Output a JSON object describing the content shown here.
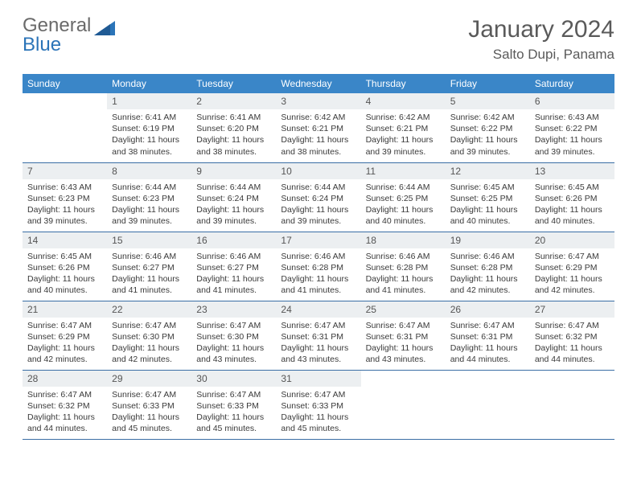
{
  "logo": {
    "word1": "General",
    "word2": "Blue"
  },
  "title": "January 2024",
  "location": "Salto Dupi, Panama",
  "colors": {
    "header_bg": "#3a86c8",
    "header_text": "#ffffff",
    "daynum_bg": "#eceff1",
    "border": "#3a6ea5",
    "logo_gray": "#6a6a6a",
    "logo_blue": "#2b74b8",
    "title_color": "#5a5a5a"
  },
  "weekdays": [
    "Sunday",
    "Monday",
    "Tuesday",
    "Wednesday",
    "Thursday",
    "Friday",
    "Saturday"
  ],
  "start_offset": 1,
  "days": [
    {
      "n": 1,
      "sr": "6:41 AM",
      "ss": "6:19 PM",
      "dl": "11 hours and 38 minutes."
    },
    {
      "n": 2,
      "sr": "6:41 AM",
      "ss": "6:20 PM",
      "dl": "11 hours and 38 minutes."
    },
    {
      "n": 3,
      "sr": "6:42 AM",
      "ss": "6:21 PM",
      "dl": "11 hours and 38 minutes."
    },
    {
      "n": 4,
      "sr": "6:42 AM",
      "ss": "6:21 PM",
      "dl": "11 hours and 39 minutes."
    },
    {
      "n": 5,
      "sr": "6:42 AM",
      "ss": "6:22 PM",
      "dl": "11 hours and 39 minutes."
    },
    {
      "n": 6,
      "sr": "6:43 AM",
      "ss": "6:22 PM",
      "dl": "11 hours and 39 minutes."
    },
    {
      "n": 7,
      "sr": "6:43 AM",
      "ss": "6:23 PM",
      "dl": "11 hours and 39 minutes."
    },
    {
      "n": 8,
      "sr": "6:44 AM",
      "ss": "6:23 PM",
      "dl": "11 hours and 39 minutes."
    },
    {
      "n": 9,
      "sr": "6:44 AM",
      "ss": "6:24 PM",
      "dl": "11 hours and 39 minutes."
    },
    {
      "n": 10,
      "sr": "6:44 AM",
      "ss": "6:24 PM",
      "dl": "11 hours and 39 minutes."
    },
    {
      "n": 11,
      "sr": "6:44 AM",
      "ss": "6:25 PM",
      "dl": "11 hours and 40 minutes."
    },
    {
      "n": 12,
      "sr": "6:45 AM",
      "ss": "6:25 PM",
      "dl": "11 hours and 40 minutes."
    },
    {
      "n": 13,
      "sr": "6:45 AM",
      "ss": "6:26 PM",
      "dl": "11 hours and 40 minutes."
    },
    {
      "n": 14,
      "sr": "6:45 AM",
      "ss": "6:26 PM",
      "dl": "11 hours and 40 minutes."
    },
    {
      "n": 15,
      "sr": "6:46 AM",
      "ss": "6:27 PM",
      "dl": "11 hours and 41 minutes."
    },
    {
      "n": 16,
      "sr": "6:46 AM",
      "ss": "6:27 PM",
      "dl": "11 hours and 41 minutes."
    },
    {
      "n": 17,
      "sr": "6:46 AM",
      "ss": "6:28 PM",
      "dl": "11 hours and 41 minutes."
    },
    {
      "n": 18,
      "sr": "6:46 AM",
      "ss": "6:28 PM",
      "dl": "11 hours and 41 minutes."
    },
    {
      "n": 19,
      "sr": "6:46 AM",
      "ss": "6:28 PM",
      "dl": "11 hours and 42 minutes."
    },
    {
      "n": 20,
      "sr": "6:47 AM",
      "ss": "6:29 PM",
      "dl": "11 hours and 42 minutes."
    },
    {
      "n": 21,
      "sr": "6:47 AM",
      "ss": "6:29 PM",
      "dl": "11 hours and 42 minutes."
    },
    {
      "n": 22,
      "sr": "6:47 AM",
      "ss": "6:30 PM",
      "dl": "11 hours and 42 minutes."
    },
    {
      "n": 23,
      "sr": "6:47 AM",
      "ss": "6:30 PM",
      "dl": "11 hours and 43 minutes."
    },
    {
      "n": 24,
      "sr": "6:47 AM",
      "ss": "6:31 PM",
      "dl": "11 hours and 43 minutes."
    },
    {
      "n": 25,
      "sr": "6:47 AM",
      "ss": "6:31 PM",
      "dl": "11 hours and 43 minutes."
    },
    {
      "n": 26,
      "sr": "6:47 AM",
      "ss": "6:31 PM",
      "dl": "11 hours and 44 minutes."
    },
    {
      "n": 27,
      "sr": "6:47 AM",
      "ss": "6:32 PM",
      "dl": "11 hours and 44 minutes."
    },
    {
      "n": 28,
      "sr": "6:47 AM",
      "ss": "6:32 PM",
      "dl": "11 hours and 44 minutes."
    },
    {
      "n": 29,
      "sr": "6:47 AM",
      "ss": "6:33 PM",
      "dl": "11 hours and 45 minutes."
    },
    {
      "n": 30,
      "sr": "6:47 AM",
      "ss": "6:33 PM",
      "dl": "11 hours and 45 minutes."
    },
    {
      "n": 31,
      "sr": "6:47 AM",
      "ss": "6:33 PM",
      "dl": "11 hours and 45 minutes."
    }
  ],
  "labels": {
    "sunrise": "Sunrise:",
    "sunset": "Sunset:",
    "daylight": "Daylight:"
  }
}
